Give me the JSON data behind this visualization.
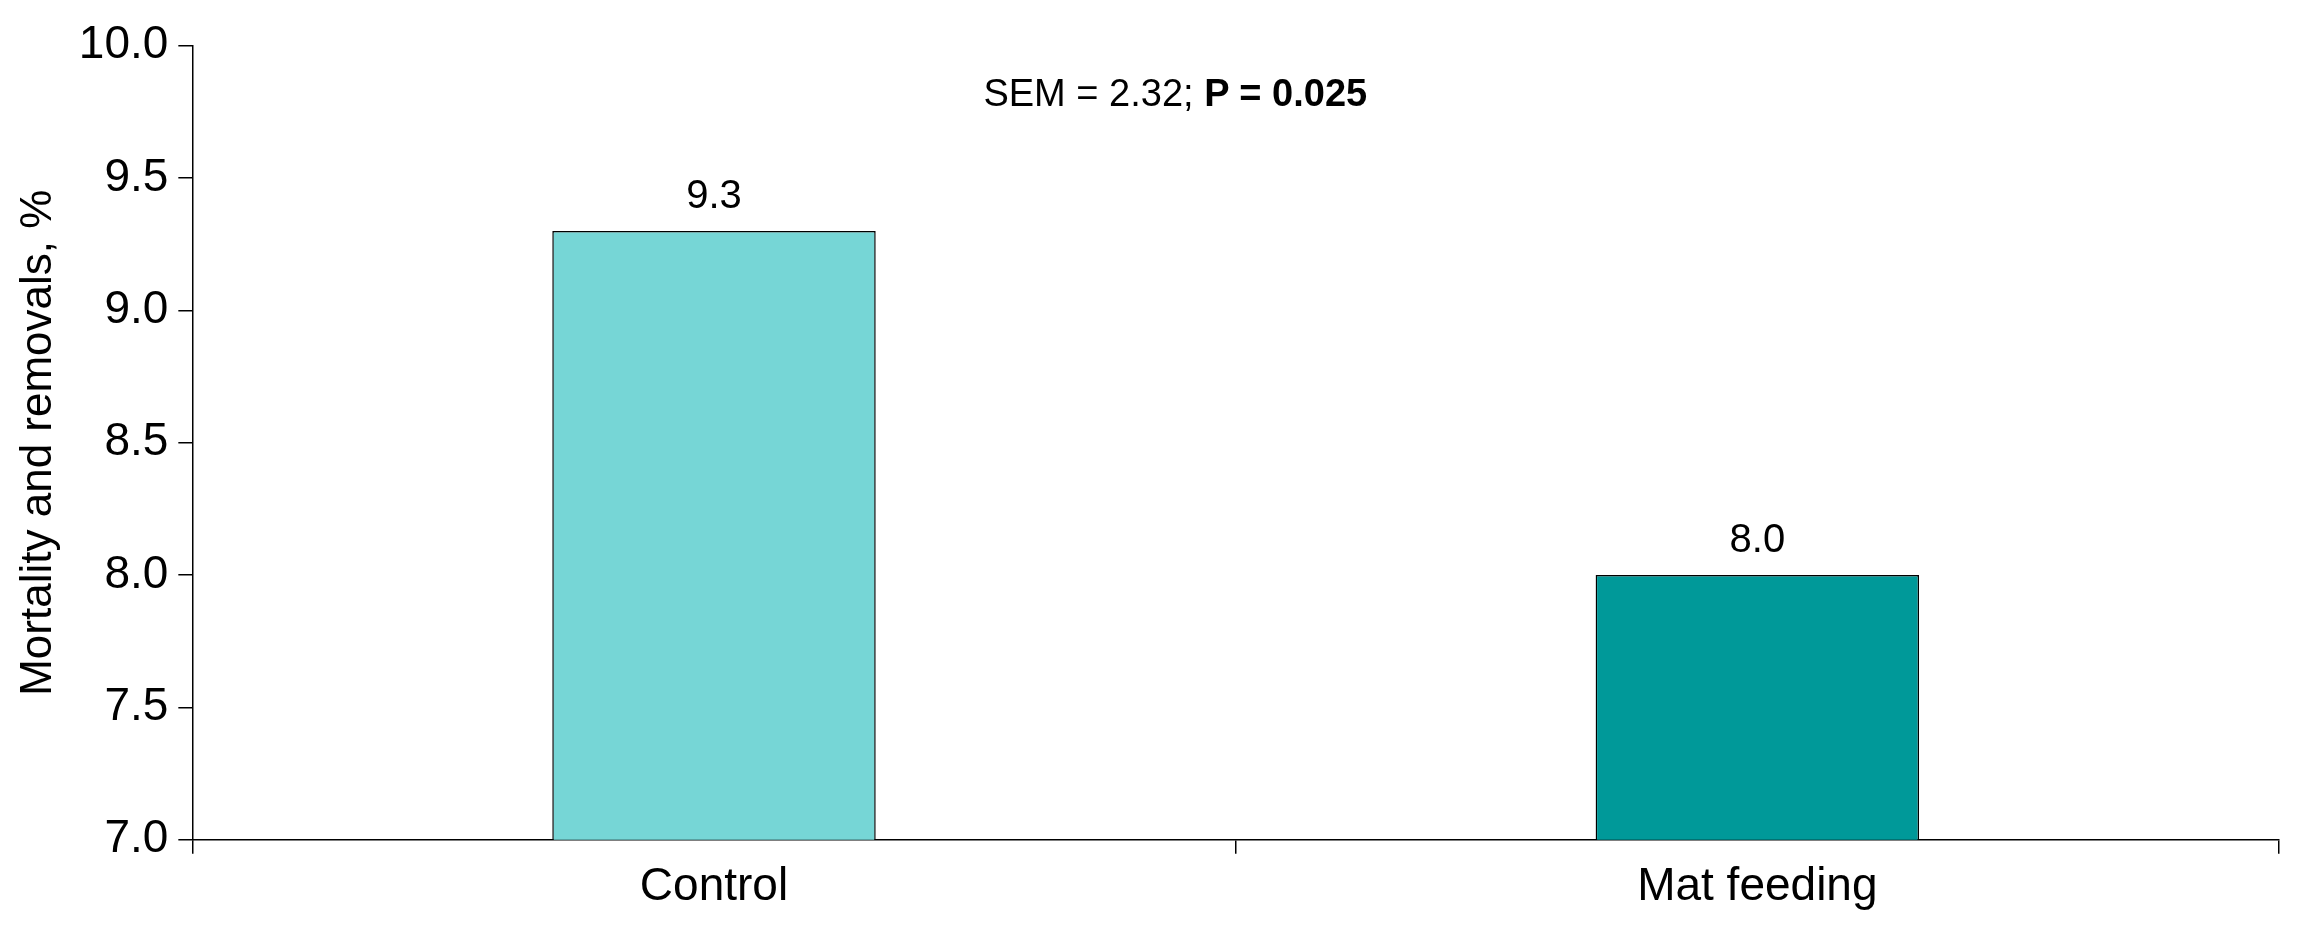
{
  "chart_data": {
    "type": "bar",
    "ylabel": "Mortality and removals, %",
    "categories": [
      "Control",
      "Mat feeding"
    ],
    "values": [
      9.3,
      8.0
    ],
    "colors": [
      "#76d6d6",
      "#009999"
    ],
    "ylim": [
      7.0,
      10.0
    ],
    "yticks": [
      {
        "value": 7,
        "label": "7.0"
      },
      {
        "value": 7.5,
        "label": "7.5"
      },
      {
        "value": 8,
        "label": "8.0"
      },
      {
        "value": 8.5,
        "label": "8.5"
      },
      {
        "value": 9,
        "label": "9.0"
      },
      {
        "value": 9.5,
        "label": "9.5"
      },
      {
        "value": 10,
        "label": "10.0"
      }
    ],
    "value_labels": [
      "9.3",
      "8.0"
    ],
    "annotations": [
      "SEM = 2.32; P = 0.025"
    ],
    "grid": false,
    "legend": false
  }
}
